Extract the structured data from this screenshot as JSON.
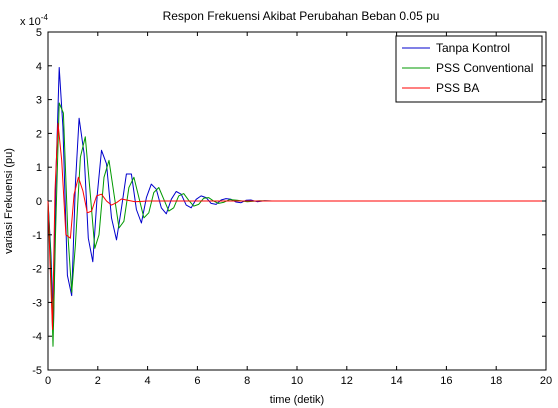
{
  "chart_data": {
    "type": "line",
    "title": "Respon Frekuensi Akibat Perubahan Beban 0.05 pu",
    "xlabel": "time (detik)",
    "ylabel": "variasi Frekuensi (pu)",
    "y_multiplier": "x 10",
    "y_exponent": "-4",
    "xlim": [
      0,
      20
    ],
    "ylim": [
      -5,
      5
    ],
    "xticks": [
      "0",
      "2",
      "4",
      "6",
      "8",
      "10",
      "12",
      "14",
      "16",
      "18",
      "20"
    ],
    "yticks": [
      "-5",
      "-4",
      "-3",
      "-2",
      "-1",
      "0",
      "1",
      "2",
      "3",
      "4",
      "5"
    ],
    "grid": false,
    "legend_position": "top-right",
    "series": [
      {
        "name": "Tanpa Kontrol",
        "color": "#0000cc",
        "x": [
          0,
          0.12,
          0.22,
          0.32,
          0.45,
          0.6,
          0.78,
          0.95,
          1.1,
          1.25,
          1.45,
          1.62,
          1.8,
          1.98,
          2.15,
          2.35,
          2.55,
          2.75,
          2.95,
          3.15,
          3.35,
          3.55,
          3.75,
          3.95,
          4.15,
          4.35,
          4.55,
          4.75,
          4.95,
          5.15,
          5.35,
          5.55,
          5.75,
          5.95,
          6.15,
          6.35,
          6.55,
          6.75,
          6.95,
          7.15,
          7.35,
          7.55,
          7.75,
          7.95,
          8.15,
          8.4,
          8.7,
          9.0,
          9.5,
          10,
          12,
          14,
          16,
          18,
          20
        ],
        "y": [
          0,
          -1.6,
          -3.7,
          0.8,
          3.95,
          2.2,
          -2.2,
          -2.8,
          0.5,
          2.45,
          1.4,
          -1.1,
          -1.8,
          0.2,
          1.5,
          1.1,
          -0.5,
          -1.15,
          -0.2,
          0.8,
          0.8,
          -0.25,
          -0.65,
          0.1,
          0.5,
          0.35,
          -0.2,
          -0.38,
          0.05,
          0.28,
          0.2,
          -0.12,
          -0.2,
          0.05,
          0.15,
          0.1,
          -0.07,
          -0.1,
          0.03,
          0.07,
          0.05,
          -0.03,
          -0.05,
          0.02,
          0.03,
          -0.02,
          0.01,
          0,
          0,
          0,
          0,
          0,
          0,
          0,
          0
        ]
      },
      {
        "name": "PSS Conventional",
        "color": "#009900",
        "x": [
          0,
          0.1,
          0.2,
          0.3,
          0.45,
          0.62,
          0.8,
          0.95,
          1.1,
          1.3,
          1.5,
          1.7,
          1.88,
          2.05,
          2.25,
          2.45,
          2.65,
          2.85,
          3.05,
          3.25,
          3.45,
          3.65,
          3.85,
          4.05,
          4.25,
          4.45,
          4.65,
          4.85,
          5.05,
          5.25,
          5.45,
          5.65,
          5.85,
          6.05,
          6.25,
          6.45,
          6.65,
          6.85,
          7.05,
          7.3,
          7.6,
          8.0,
          8.5,
          9,
          10,
          12,
          14,
          16,
          18,
          20
        ],
        "y": [
          0,
          -1.5,
          -4.3,
          -1.0,
          2.9,
          2.6,
          -1.0,
          -2.7,
          -1.3,
          1.3,
          1.9,
          0.2,
          -1.4,
          -1.0,
          0.7,
          1.2,
          0.2,
          -0.8,
          -0.6,
          0.4,
          0.7,
          0.1,
          -0.5,
          -0.35,
          0.25,
          0.4,
          0.05,
          -0.3,
          -0.2,
          0.15,
          0.22,
          0.02,
          -0.15,
          -0.1,
          0.08,
          0.1,
          0,
          -0.07,
          -0.04,
          0.04,
          0.02,
          -0.02,
          0.01,
          0,
          0,
          0,
          0,
          0,
          0,
          0
        ]
      },
      {
        "name": "PSS BA",
        "color": "#ff0000",
        "x": [
          0,
          0.08,
          0.18,
          0.28,
          0.4,
          0.55,
          0.72,
          0.9,
          1.05,
          1.22,
          1.4,
          1.58,
          1.75,
          1.95,
          2.15,
          2.35,
          2.55,
          2.75,
          2.95,
          3.2,
          3.5,
          4.0,
          5,
          6,
          8,
          10,
          12,
          14,
          16,
          18,
          20
        ],
        "y": [
          0,
          -1.8,
          -3.8,
          0.3,
          2.3,
          1.2,
          -1.0,
          -1.1,
          0.2,
          0.7,
          0.3,
          -0.35,
          -0.3,
          0.15,
          0.2,
          0,
          -0.12,
          -0.05,
          0.06,
          0.02,
          -0.02,
          0,
          0,
          0,
          0,
          0,
          0,
          0,
          0,
          0,
          0
        ]
      }
    ]
  }
}
